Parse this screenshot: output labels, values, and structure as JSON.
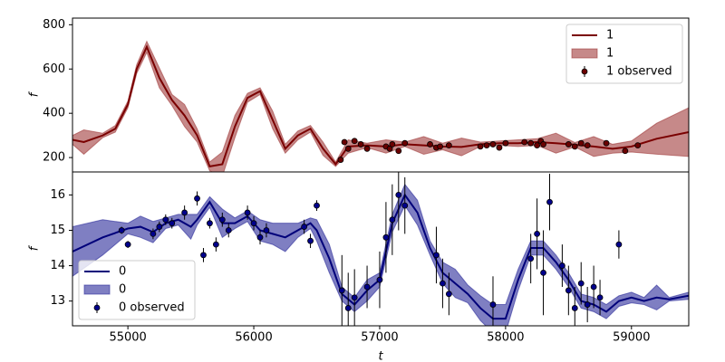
{
  "chart_data": [
    {
      "type": "line",
      "ylabel": "f",
      "legend": "upper right",
      "xlim": [
        54560,
        59455
      ],
      "ylim": [
        135,
        830
      ],
      "yticks": [
        200,
        400,
        600,
        800
      ],
      "x": [
        54560,
        54650,
        54800,
        54900,
        55000,
        55070,
        55150,
        55250,
        55350,
        55450,
        55550,
        55650,
        55750,
        55850,
        55950,
        56050,
        56150,
        56250,
        56350,
        56450,
        56550,
        56650,
        56750,
        56900,
        57050,
        57200,
        57350,
        57500,
        57650,
        57800,
        57950,
        58100,
        58250,
        58400,
        58550,
        58700,
        58850,
        59000,
        59200,
        59455
      ],
      "series": [
        {
          "name": "1",
          "color": "#7a0000",
          "values": [
            280,
            270,
            300,
            330,
            440,
            600,
            700,
            560,
            460,
            390,
            300,
            160,
            170,
            340,
            470,
            500,
            370,
            240,
            300,
            330,
            240,
            170,
            250,
            255,
            250,
            260,
            255,
            250,
            248,
            260,
            265,
            265,
            270,
            265,
            258,
            250,
            240,
            250,
            285,
            315
          ]
        }
      ],
      "band": {
        "name": "1",
        "color": "#a03a3a",
        "lower": [
          260,
          215,
          290,
          315,
          425,
          580,
          675,
          515,
          435,
          340,
          270,
          140,
          115,
          290,
          450,
          485,
          330,
          220,
          280,
          315,
          210,
          160,
          220,
          245,
          220,
          250,
          215,
          235,
          208,
          250,
          255,
          250,
          255,
          220,
          248,
          205,
          220,
          225,
          215,
          205
        ],
        "upper": [
          300,
          325,
          310,
          345,
          455,
          620,
          725,
          605,
          485,
          440,
          330,
          180,
          225,
          390,
          490,
          515,
          410,
          260,
          320,
          345,
          270,
          180,
          280,
          265,
          280,
          270,
          295,
          265,
          288,
          270,
          275,
          280,
          285,
          310,
          268,
          295,
          260,
          275,
          355,
          425
        ]
      },
      "observed": {
        "name": "1 observed",
        "color": "#6b0000",
        "x": [
          56690,
          56720,
          56750,
          56800,
          56850,
          56900,
          57050,
          57080,
          57100,
          57150,
          57200,
          57400,
          57450,
          57480,
          57550,
          57800,
          57850,
          57900,
          57950,
          58000,
          58150,
          58200,
          58250,
          58280,
          58300,
          58500,
          58550,
          58600,
          58650,
          58800,
          58950,
          59050
        ],
        "values": [
          190,
          270,
          240,
          275,
          260,
          240,
          250,
          240,
          260,
          230,
          265,
          260,
          245,
          250,
          255,
          250,
          255,
          260,
          245,
          265,
          270,
          265,
          255,
          275,
          260,
          260,
          250,
          265,
          255,
          265,
          230,
          255
        ],
        "errors": [
          10,
          10,
          10,
          10,
          10,
          10,
          10,
          10,
          10,
          10,
          10,
          10,
          10,
          10,
          10,
          10,
          10,
          10,
          10,
          10,
          10,
          10,
          10,
          10,
          10,
          10,
          10,
          10,
          10,
          10,
          10,
          10
        ]
      }
    },
    {
      "type": "line",
      "ylabel": "f",
      "xlabel": "t",
      "legend": "lower left",
      "xlim": [
        54560,
        59455
      ],
      "xticks": [
        55000,
        56000,
        57000,
        58000,
        59000
      ],
      "ylim": [
        12.3,
        16.65
      ],
      "yticks": [
        13,
        14,
        15,
        16
      ],
      "x": [
        54560,
        54800,
        55000,
        55100,
        55200,
        55300,
        55400,
        55500,
        55550,
        55650,
        55750,
        55850,
        55950,
        56050,
        56150,
        56250,
        56350,
        56450,
        56500,
        56600,
        56700,
        56800,
        56900,
        57000,
        57100,
        57200,
        57300,
        57400,
        57500,
        57600,
        57700,
        57800,
        57900,
        58000,
        58100,
        58200,
        58300,
        58400,
        58500,
        58600,
        58700,
        58800,
        58900,
        59000,
        59100,
        59200,
        59300,
        59455
      ],
      "series": [
        {
          "name": "0",
          "color": "#00007a",
          "values": [
            14.4,
            14.8,
            15.05,
            15.1,
            14.95,
            15.2,
            15.3,
            15.1,
            15.3,
            15.8,
            15.2,
            15.2,
            15.4,
            15.0,
            14.9,
            14.8,
            15.0,
            15.2,
            15.0,
            14.2,
            13.2,
            12.9,
            13.3,
            13.6,
            15.2,
            16.0,
            15.5,
            14.5,
            13.8,
            13.5,
            13.2,
            12.8,
            12.5,
            12.5,
            13.6,
            14.5,
            14.5,
            14.1,
            13.6,
            13.0,
            12.9,
            12.7,
            13.0,
            13.1,
            13.0,
            13.1,
            13.05,
            13.15
          ]
        }
      ],
      "band": {
        "name": "0",
        "color": "#2a2a9a",
        "lower": [
          13.7,
          14.3,
          14.9,
          14.8,
          14.65,
          15.05,
          15.15,
          14.75,
          15.15,
          15.65,
          14.8,
          15.05,
          15.25,
          14.7,
          14.6,
          14.4,
          14.8,
          15.05,
          14.7,
          13.8,
          13.0,
          12.7,
          13.0,
          13.4,
          14.95,
          15.7,
          15.15,
          14.3,
          13.5,
          13.1,
          12.95,
          12.45,
          12.1,
          12.1,
          13.3,
          14.3,
          14.3,
          13.9,
          13.4,
          12.8,
          12.7,
          12.5,
          12.85,
          12.95,
          12.9,
          12.75,
          13.0,
          13.05
        ],
        "upper": [
          15.1,
          15.3,
          15.2,
          15.4,
          15.25,
          15.35,
          15.45,
          15.45,
          15.45,
          15.95,
          15.6,
          15.35,
          15.55,
          15.3,
          15.2,
          15.2,
          15.2,
          15.35,
          15.3,
          14.6,
          13.4,
          13.1,
          13.6,
          13.8,
          15.45,
          16.3,
          15.85,
          14.7,
          14.1,
          13.9,
          13.45,
          13.15,
          12.9,
          12.9,
          13.9,
          14.7,
          14.7,
          14.3,
          13.8,
          13.2,
          13.1,
          12.9,
          13.15,
          13.25,
          13.1,
          13.45,
          13.1,
          13.25
        ]
      },
      "observed": {
        "name": "0 observed",
        "color": "#00008b",
        "x": [
          54950,
          55000,
          55200,
          55250,
          55300,
          55350,
          55450,
          55550,
          55600,
          55650,
          55700,
          55750,
          55800,
          55950,
          56000,
          56050,
          56100,
          56400,
          56450,
          56500,
          56700,
          56750,
          56800,
          56900,
          57000,
          57050,
          57100,
          57150,
          57200,
          57450,
          57500,
          57550,
          57900,
          58200,
          58250,
          58300,
          58350,
          58450,
          58500,
          58550,
          58600,
          58650,
          58700,
          58750,
          58900
        ],
        "values": [
          15.0,
          14.6,
          14.9,
          15.1,
          15.3,
          15.2,
          15.5,
          15.9,
          14.3,
          15.2,
          14.6,
          15.3,
          15.0,
          15.5,
          15.2,
          14.8,
          15.0,
          15.1,
          14.7,
          15.7,
          13.3,
          12.8,
          13.1,
          13.4,
          13.6,
          14.8,
          15.3,
          16.0,
          15.7,
          14.3,
          13.5,
          13.2,
          12.9,
          14.2,
          14.9,
          13.8,
          15.8,
          14.0,
          13.3,
          12.8,
          13.5,
          12.9,
          13.4,
          13.1,
          14.6
        ],
        "errors": [
          0.1,
          0.1,
          0.15,
          0.15,
          0.15,
          0.15,
          0.2,
          0.2,
          0.2,
          0.15,
          0.2,
          0.2,
          0.2,
          0.2,
          0.2,
          0.2,
          0.2,
          0.2,
          0.2,
          0.15,
          1.0,
          1.0,
          0.8,
          0.6,
          0.8,
          1.0,
          1.0,
          1.0,
          0.8,
          0.8,
          0.7,
          0.6,
          0.8,
          0.7,
          1.0,
          1.2,
          0.8,
          0.6,
          0.7,
          0.6,
          0.6,
          0.5,
          0.6,
          0.5,
          0.4
        ]
      }
    }
  ]
}
